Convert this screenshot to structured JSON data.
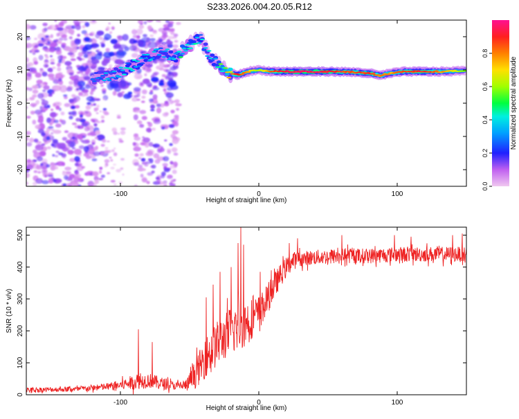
{
  "figure": {
    "title": "S233.2026.004.20.05.R12"
  },
  "chart_data": [
    {
      "type": "heatmap",
      "title": "S233.2026.004.20.05.R12",
      "xlabel": "Height of straight line (km)",
      "ylabel": "Frequency (Hz)",
      "xlim": [
        -168,
        150
      ],
      "ylim": [
        -25,
        25
      ],
      "xticks": [
        -100,
        0,
        100
      ],
      "xtick_labels": [
        "-100",
        "0",
        "100"
      ],
      "yticks": [
        -20,
        -10,
        0,
        10,
        20
      ],
      "ytick_labels": [
        "-20",
        "-10",
        "0",
        "10",
        "20"
      ],
      "grid": false,
      "ridge": {
        "description_units": "frequency (Hz) vs height (km)",
        "points": [
          {
            "x": -120,
            "y": 7.5,
            "a": 0.3
          },
          {
            "x": -105,
            "y": 8.5,
            "a": 0.35
          },
          {
            "x": -95,
            "y": 10.5,
            "a": 0.4
          },
          {
            "x": -85,
            "y": 12.5,
            "a": 0.4
          },
          {
            "x": -78,
            "y": 14.5,
            "a": 0.4
          },
          {
            "x": -70,
            "y": 15.5,
            "a": 0.35
          },
          {
            "x": -60,
            "y": 13.5,
            "a": 0.4
          },
          {
            "x": -55,
            "y": 16,
            "a": 0.5
          },
          {
            "x": -50,
            "y": 17.5,
            "a": 0.45
          },
          {
            "x": -42,
            "y": 19.5,
            "a": 0.4
          },
          {
            "x": -38,
            "y": 16,
            "a": 0.35
          },
          {
            "x": -33,
            "y": 13,
            "a": 0.4
          },
          {
            "x": -28,
            "y": 11,
            "a": 0.5
          },
          {
            "x": -22,
            "y": 9,
            "a": 0.75
          },
          {
            "x": -15,
            "y": 8.5,
            "a": 0.9
          },
          {
            "x": -8,
            "y": 9.5,
            "a": 0.75
          },
          {
            "x": 0,
            "y": 10,
            "a": 0.6
          },
          {
            "x": 10,
            "y": 9.5,
            "a": 0.85
          },
          {
            "x": 25,
            "y": 9.5,
            "a": 0.95
          },
          {
            "x": 40,
            "y": 9.5,
            "a": 0.95
          },
          {
            "x": 55,
            "y": 9.5,
            "a": 0.9
          },
          {
            "x": 70,
            "y": 9.3,
            "a": 0.85
          },
          {
            "x": 80,
            "y": 9,
            "a": 0.9
          },
          {
            "x": 88,
            "y": 8.3,
            "a": 0.8
          },
          {
            "x": 95,
            "y": 9,
            "a": 0.75
          },
          {
            "x": 105,
            "y": 9.5,
            "a": 0.85
          },
          {
            "x": 120,
            "y": 9.5,
            "a": 0.9
          },
          {
            "x": 135,
            "y": 9.5,
            "a": 0.75
          },
          {
            "x": 150,
            "y": 9.8,
            "a": 0.55
          }
        ]
      },
      "colorbar": {
        "label": "Normalized spectral amplitude",
        "range": [
          0.0,
          1.0
        ],
        "ticks": [
          0.0,
          0.2,
          0.4,
          0.6,
          0.8
        ],
        "tick_labels": [
          "0.0",
          "0.2",
          "0.4",
          "0.6",
          "0.8"
        ],
        "stops": [
          {
            "v": 0.0,
            "color": "#f0c8f0"
          },
          {
            "v": 0.1,
            "color": "#c060f0"
          },
          {
            "v": 0.2,
            "color": "#2020ff"
          },
          {
            "v": 0.32,
            "color": "#00a0ff"
          },
          {
            "v": 0.42,
            "color": "#00f0e0"
          },
          {
            "v": 0.5,
            "color": "#00ff40"
          },
          {
            "v": 0.6,
            "color": "#a0ff00"
          },
          {
            "v": 0.7,
            "color": "#ffe000"
          },
          {
            "v": 0.8,
            "color": "#ff8000"
          },
          {
            "v": 0.9,
            "color": "#ff2020"
          },
          {
            "v": 1.0,
            "color": "#ff1090"
          }
        ]
      }
    },
    {
      "type": "line",
      "xlabel": "Height of straight line (km)",
      "ylabel": "SNR (10 * v/v)",
      "xlim": [
        -168,
        150
      ],
      "ylim": [
        0,
        525
      ],
      "xticks": [
        -100,
        0,
        100
      ],
      "xtick_labels": [
        "-100",
        "0",
        "100"
      ],
      "yticks": [
        0,
        100,
        200,
        300,
        400,
        500
      ],
      "ytick_labels": [
        "0",
        "100",
        "200",
        "300",
        "400",
        "500"
      ],
      "grid": false,
      "series": [
        {
          "name": "SNR",
          "color": "#ee2222",
          "envelope": {
            "x": [
              -168,
              -130,
              -110,
              -100,
              -90,
              -80,
              -70,
              -60,
              -52,
              -45,
              -38,
              -30,
              -25,
              -20,
              -15,
              -10,
              -5,
              0,
              5,
              10,
              15,
              20,
              25,
              30,
              40,
              60,
              80,
              100,
              120,
              150
            ],
            "mean": [
              15,
              18,
              25,
              30,
              40,
              45,
              35,
              28,
              30,
              70,
              120,
              160,
              180,
              200,
              215,
              225,
              240,
              255,
              290,
              330,
              370,
              400,
              420,
              425,
              430,
              435,
              435,
              440,
              440,
              440
            ],
            "spread": [
              10,
              10,
              15,
              20,
              30,
              30,
              25,
              15,
              25,
              60,
              80,
              90,
              90,
              100,
              100,
              95,
              80,
              70,
              60,
              55,
              45,
              40,
              35,
              30,
              30,
              30,
              30,
              30,
              30,
              30
            ]
          },
          "spikes": [
            {
              "x": -87,
              "y": 205
            },
            {
              "x": -77,
              "y": 165
            },
            {
              "x": -38,
              "y": 305
            },
            {
              "x": -33,
              "y": 345
            },
            {
              "x": -28,
              "y": 385
            },
            {
              "x": -20,
              "y": 400
            },
            {
              "x": -15,
              "y": 475
            },
            {
              "x": -13,
              "y": 525
            },
            {
              "x": -11,
              "y": 470
            },
            {
              "x": 1,
              "y": 385
            },
            {
              "x": 9,
              "y": 390
            },
            {
              "x": 22,
              "y": 475
            },
            {
              "x": 28,
              "y": 490
            },
            {
              "x": 60,
              "y": 500
            },
            {
              "x": 98,
              "y": 500
            },
            {
              "x": 110,
              "y": 495
            },
            {
              "x": 140,
              "y": 500
            },
            {
              "x": 147,
              "y": 505
            }
          ]
        }
      ]
    }
  ]
}
